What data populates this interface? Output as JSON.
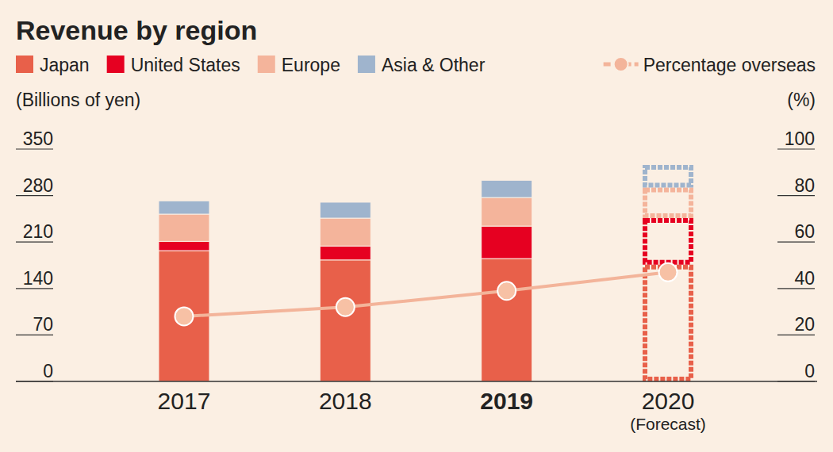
{
  "chart_data": {
    "type": "bar",
    "stacked": true,
    "title": "Revenue by region",
    "y_label": "(Billions of yen)",
    "y2_label": "(%)",
    "categories": [
      "2017",
      "2018",
      "2019",
      "2020"
    ],
    "annotations": [
      {
        "text": "(Forecast)",
        "x": "2020"
      }
    ],
    "series": [
      {
        "name": "Japan",
        "color": "#e8604a",
        "values": [
          197,
          183,
          185,
          176
        ]
      },
      {
        "name": "United States",
        "color": "#e60021",
        "values": [
          14,
          21,
          49,
          70
        ]
      },
      {
        "name": "Europe",
        "color": "#f4b49b",
        "values": [
          41,
          42,
          43,
          46
        ]
      },
      {
        "name": "Asia & Other",
        "color": "#9fb4cd",
        "values": [
          20,
          24,
          26,
          34
        ]
      },
      {
        "name": "Percentage overseas",
        "type": "line",
        "axis": "y2",
        "marker": "circle",
        "color": "#f3b49a",
        "values": [
          28,
          32,
          39,
          47
        ]
      }
    ],
    "ylim": [
      0,
      350
    ],
    "yticks": [
      0,
      70,
      140,
      210,
      280,
      350
    ],
    "y2lim": [
      0,
      100
    ],
    "y2ticks": [
      0,
      20,
      40,
      60,
      80,
      100
    ],
    "legend": "top"
  }
}
